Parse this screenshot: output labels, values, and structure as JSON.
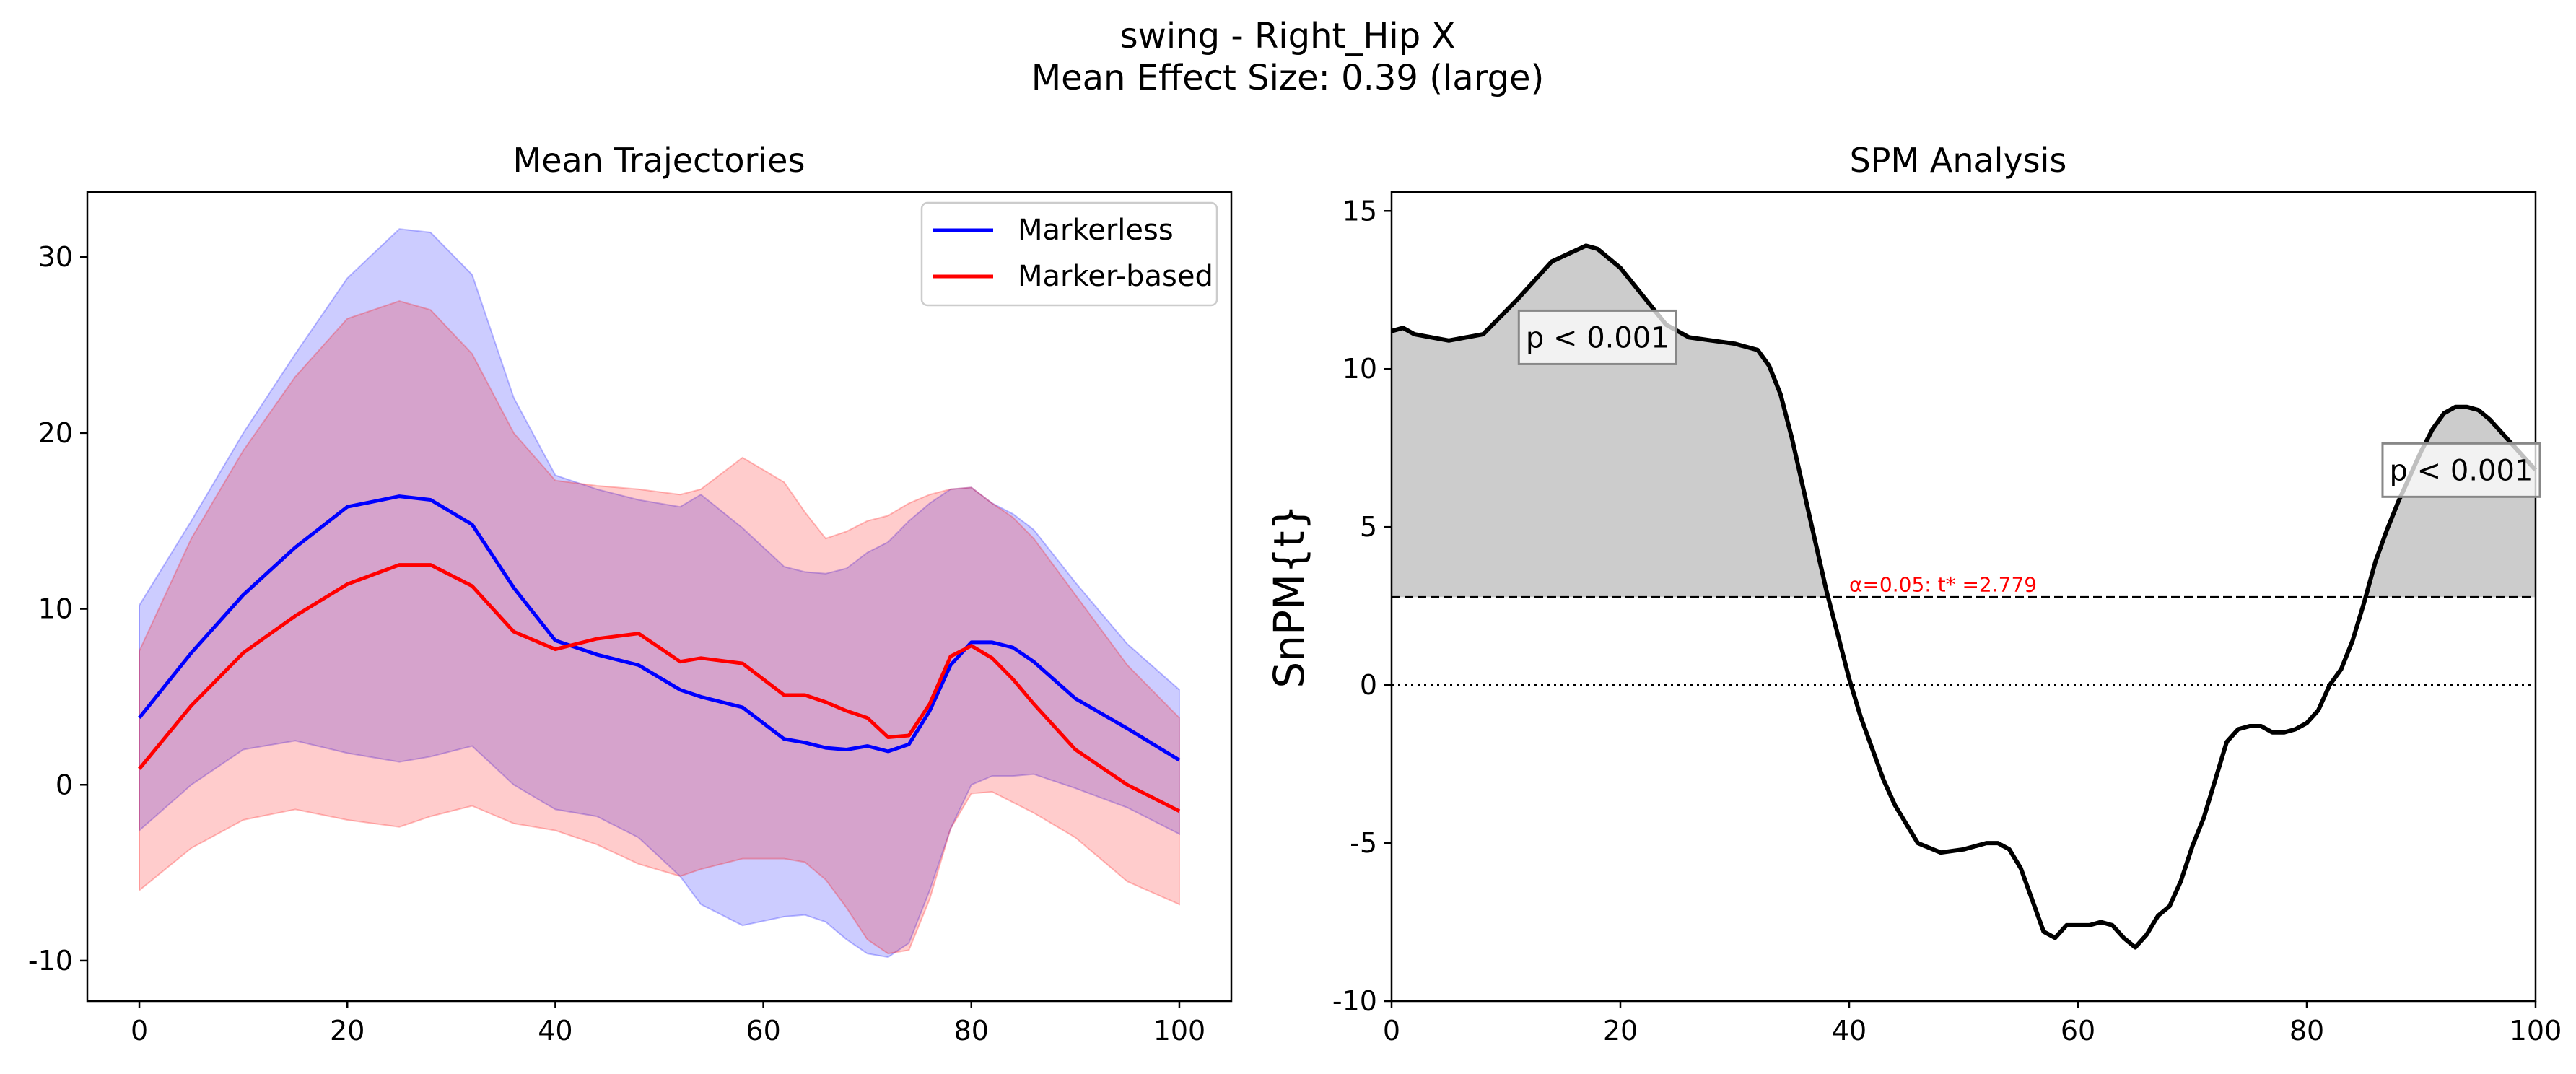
{
  "figure": {
    "title_line1": "swing - Right_Hip X",
    "title_line2": "Mean Effect Size: 0.39 (large)"
  },
  "chart_data": [
    {
      "type": "line",
      "title": "Mean Trajectories",
      "xlabel": "",
      "ylabel": "",
      "xlim": [
        -5,
        105
      ],
      "ylim": [
        -12.3,
        33.7
      ],
      "xticks": [
        0,
        20,
        40,
        60,
        80,
        100
      ],
      "yticks": [
        -10,
        0,
        10,
        20,
        30
      ],
      "grid": false,
      "legend": "upper right",
      "series": [
        {
          "name": "Markerless",
          "color": "#0000ff",
          "band_color": "#0000ff",
          "x": [
            0,
            5,
            10,
            15,
            20,
            25,
            28,
            32,
            36,
            40,
            44,
            48,
            52,
            54,
            58,
            62,
            64,
            66,
            68,
            70,
            72,
            74,
            76,
            78,
            80,
            82,
            84,
            86,
            90,
            95,
            100
          ],
          "mean": [
            3.8,
            7.5,
            10.8,
            13.5,
            15.8,
            16.4,
            16.2,
            14.8,
            11.2,
            8.2,
            7.4,
            6.8,
            5.4,
            5.0,
            4.4,
            2.6,
            2.4,
            2.1,
            2.0,
            2.2,
            1.9,
            2.3,
            4.2,
            6.8,
            8.1,
            8.1,
            7.8,
            7.0,
            4.9,
            3.2,
            1.4
          ],
          "upper": [
            10.2,
            15.0,
            20.0,
            24.5,
            28.8,
            31.6,
            31.4,
            29.0,
            22.0,
            17.6,
            16.8,
            16.2,
            15.8,
            16.5,
            14.6,
            12.4,
            12.1,
            12.0,
            12.3,
            13.2,
            13.8,
            15.0,
            16.0,
            16.8,
            16.9,
            16.0,
            15.4,
            14.5,
            11.5,
            8.0,
            5.4
          ],
          "lower": [
            -2.6,
            0.0,
            2.0,
            2.5,
            1.8,
            1.3,
            1.6,
            2.2,
            0.0,
            -1.4,
            -1.8,
            -3.0,
            -5.2,
            -6.8,
            -8.0,
            -7.5,
            -7.4,
            -7.8,
            -8.8,
            -9.6,
            -9.8,
            -9.0,
            -6.0,
            -2.5,
            0.0,
            0.5,
            0.5,
            0.6,
            -0.2,
            -1.3,
            -2.8
          ]
        },
        {
          "name": "Marker-based",
          "color": "#ff0000",
          "band_color": "#ff0000",
          "x": [
            0,
            5,
            10,
            15,
            20,
            25,
            28,
            32,
            36,
            40,
            44,
            48,
            52,
            54,
            58,
            62,
            64,
            66,
            68,
            70,
            72,
            74,
            76,
            78,
            80,
            82,
            84,
            86,
            90,
            95,
            100
          ],
          "mean": [
            0.9,
            4.5,
            7.5,
            9.6,
            11.4,
            12.5,
            12.5,
            11.3,
            8.7,
            7.7,
            8.3,
            8.6,
            7.0,
            7.2,
            6.9,
            5.1,
            5.1,
            4.7,
            4.2,
            3.8,
            2.7,
            2.8,
            4.6,
            7.3,
            7.9,
            7.2,
            6.0,
            4.6,
            2.0,
            0.0,
            -1.5
          ],
          "upper": [
            7.6,
            14.0,
            19.0,
            23.2,
            26.5,
            27.5,
            27.0,
            24.5,
            20.0,
            17.3,
            17.0,
            16.8,
            16.5,
            16.8,
            18.6,
            17.2,
            15.5,
            14.0,
            14.4,
            15.0,
            15.3,
            16.0,
            16.5,
            16.8,
            16.9,
            16.0,
            15.2,
            14.0,
            10.8,
            6.8,
            3.8
          ],
          "lower": [
            -6.0,
            -3.6,
            -2.0,
            -1.4,
            -2.0,
            -2.4,
            -1.8,
            -1.2,
            -2.2,
            -2.6,
            -3.4,
            -4.5,
            -5.2,
            -4.8,
            -4.2,
            -4.2,
            -4.4,
            -5.4,
            -7.0,
            -8.8,
            -9.6,
            -9.4,
            -6.5,
            -2.5,
            -0.5,
            -0.4,
            -1.0,
            -1.6,
            -3.0,
            -5.5,
            -6.8
          ]
        }
      ]
    },
    {
      "type": "line",
      "title": "SPM Analysis",
      "xlabel": "",
      "ylabel": "SnPM{t}",
      "xlim": [
        0,
        100
      ],
      "ylim": [
        -10,
        15.6
      ],
      "xticks": [
        0,
        20,
        40,
        60,
        80,
        100
      ],
      "yticks": [
        -10,
        -5,
        0,
        5,
        10,
        15
      ],
      "grid": false,
      "threshold": 2.779,
      "threshold_label": "α=0.05:  t* =2.779",
      "threshold_color": "#ff0000",
      "cluster_color": "#cccccc",
      "zero_line": 0,
      "series": [
        {
          "color": "#000000",
          "x": [
            0,
            1,
            2,
            5,
            8,
            11,
            14,
            17,
            18,
            20,
            22,
            24,
            26,
            28,
            30,
            32,
            33,
            34,
            35,
            36,
            37,
            38,
            39,
            40,
            41,
            42,
            43,
            44,
            46,
            48,
            50,
            52,
            53,
            54,
            55,
            56,
            57,
            58,
            59,
            60,
            61,
            62,
            63,
            64,
            65,
            66,
            67,
            68,
            69,
            70,
            71,
            72,
            73,
            74,
            75,
            76,
            77,
            78,
            79,
            80,
            81,
            82,
            83,
            84,
            85,
            86,
            87,
            88,
            89,
            90,
            91,
            92,
            93,
            94,
            95,
            96,
            97,
            98,
            99,
            100
          ],
          "y": [
            11.2,
            11.3,
            11.1,
            10.9,
            11.1,
            12.2,
            13.4,
            13.9,
            13.8,
            13.2,
            12.3,
            11.4,
            11.0,
            10.9,
            10.8,
            10.6,
            10.1,
            9.2,
            7.8,
            6.2,
            4.6,
            3.0,
            1.6,
            0.2,
            -1.0,
            -2.0,
            -3.0,
            -3.8,
            -5.0,
            -5.3,
            -5.2,
            -5.0,
            -5.0,
            -5.2,
            -5.8,
            -6.8,
            -7.8,
            -8.0,
            -7.6,
            -7.6,
            -7.6,
            -7.5,
            -7.6,
            -8.0,
            -8.3,
            -7.9,
            -7.3,
            -7.0,
            -6.2,
            -5.1,
            -4.2,
            -3.0,
            -1.8,
            -1.4,
            -1.3,
            -1.3,
            -1.5,
            -1.5,
            -1.4,
            -1.2,
            -0.8,
            0.0,
            0.5,
            1.4,
            2.6,
            3.9,
            4.9,
            5.8,
            6.6,
            7.4,
            8.1,
            8.6,
            8.8,
            8.8,
            8.7,
            8.4,
            8.0,
            7.6,
            7.2,
            6.8
          ]
        }
      ],
      "annotations": [
        {
          "text": "p < 0.001",
          "x": 18,
          "y": 11.0
        },
        {
          "text": "p < 0.001",
          "x": 93.5,
          "y": 6.8
        }
      ]
    }
  ]
}
